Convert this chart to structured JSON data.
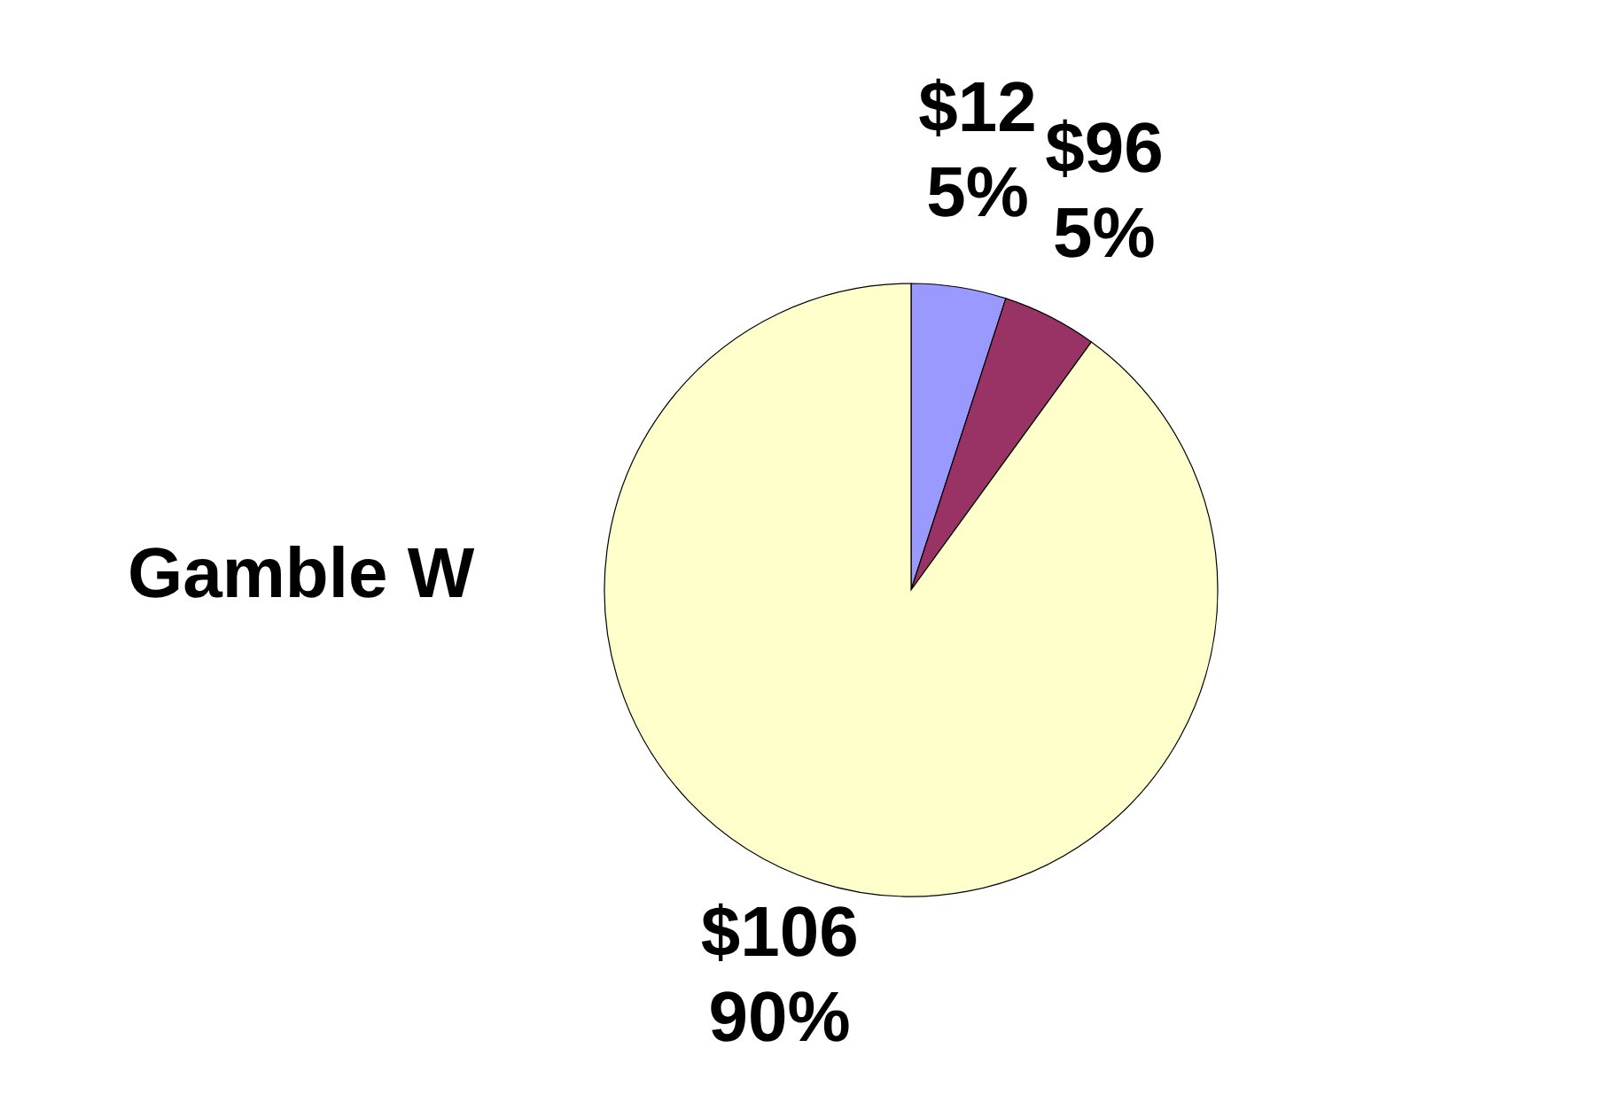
{
  "chart_data": {
    "type": "pie",
    "title": "Gamble W",
    "categories": [
      "$12",
      "$96",
      "$106"
    ],
    "values": [
      5,
      5,
      90
    ],
    "value_labels": [
      "5%",
      "5%",
      "90%"
    ],
    "colors": [
      "#9999ff",
      "#993366",
      "#ffffcc"
    ]
  }
}
